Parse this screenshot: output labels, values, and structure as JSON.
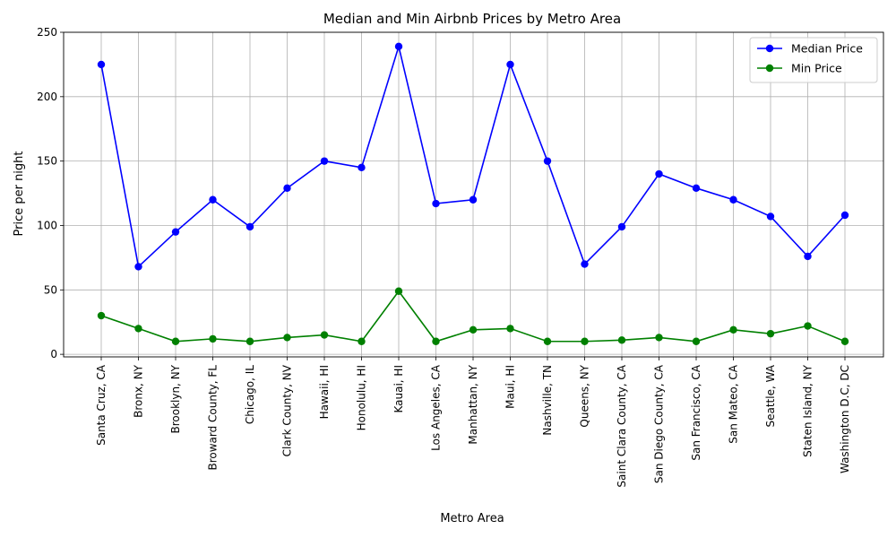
{
  "chart_data": {
    "type": "line",
    "title": "Median and Min Airbnb Prices by Metro Area",
    "xlabel": "Metro Area",
    "ylabel": "Price per night",
    "ylim": [
      -2,
      250
    ],
    "yticks": [
      0,
      50,
      100,
      150,
      200,
      250
    ],
    "grid": true,
    "legend_position": "top-right",
    "categories": [
      "Santa Cruz, CA",
      "Bronx, NY",
      "Brooklyn, NY",
      "Broward County, FL",
      "Chicago, IL",
      "Clark County, NV",
      "Hawaii, HI",
      "Honolulu, HI",
      "Kauai, HI",
      "Los Angeles, CA",
      "Manhattan, NY",
      "Maui, HI",
      "Nashville, TN",
      "Queens, NY",
      "Saint Clara County, CA",
      "San Diego County, CA",
      "San Francisco, CA",
      "San Mateo, CA",
      "Seattle, WA",
      "Staten Island, NY",
      "Washington D.C, DC"
    ],
    "series": [
      {
        "name": "Median Price",
        "color": "#0000ff",
        "marker": "circle",
        "values": [
          225,
          68,
          95,
          120,
          99,
          129,
          150,
          145,
          239,
          117,
          120,
          225,
          150,
          70,
          99,
          140,
          129,
          120,
          107,
          76,
          108
        ]
      },
      {
        "name": "Min Price",
        "color": "#008000",
        "marker": "circle",
        "values": [
          30,
          20,
          10,
          12,
          10,
          13,
          15,
          10,
          49,
          10,
          19,
          20,
          10,
          10,
          11,
          13,
          10,
          19,
          16,
          22,
          10
        ]
      }
    ]
  }
}
